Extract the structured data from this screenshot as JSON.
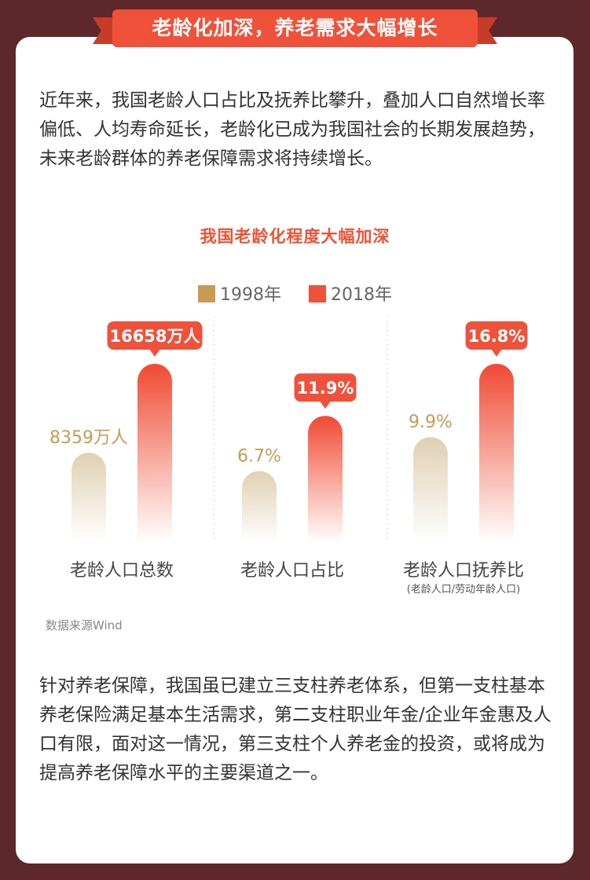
{
  "header": {
    "title": "老龄化加深，养老需求大幅增长"
  },
  "intro": "近年来，我国老龄人口占比及抚养比攀升，叠加人口自然增长率偏低、人均寿命延长，老龄化已成为我国社会的长期发展趋势，未来老龄群体的养老保障需求将持续增长。",
  "chart_data": {
    "type": "bar",
    "title": "我国老龄化程度大幅加深",
    "legend_position": "top",
    "grid": false,
    "series": [
      {
        "name": "1998年",
        "color": "#c89a52"
      },
      {
        "name": "2018年",
        "color": "#f0513a"
      }
    ],
    "groups": [
      {
        "category": "老龄人口总数",
        "note": "",
        "values": [
          8359,
          16658
        ],
        "labels": [
          "8359万人",
          "16658万人"
        ],
        "max": 16658
      },
      {
        "category": "老龄人口占比",
        "note": "",
        "values": [
          6.7,
          11.9
        ],
        "labels": [
          "6.7%",
          "11.9%"
        ],
        "max": 16.8
      },
      {
        "category": "老龄人口抚养比",
        "note": "(老龄人口/劳动年龄人口)",
        "values": [
          9.9,
          16.8
        ],
        "labels": [
          "9.9%",
          "16.8%"
        ],
        "max": 16.8
      }
    ]
  },
  "source": "数据来源Wind",
  "closing": "针对养老保障，我国虽已建立三支柱养老体系，但第一支柱基本养老保险满足基本生活需求，第二支柱职业年金/企业年金惠及人口有限，面对这一情况，第三支柱个人养老金的投资，或将成为提高养老保障水平的主要渠道之一。"
}
